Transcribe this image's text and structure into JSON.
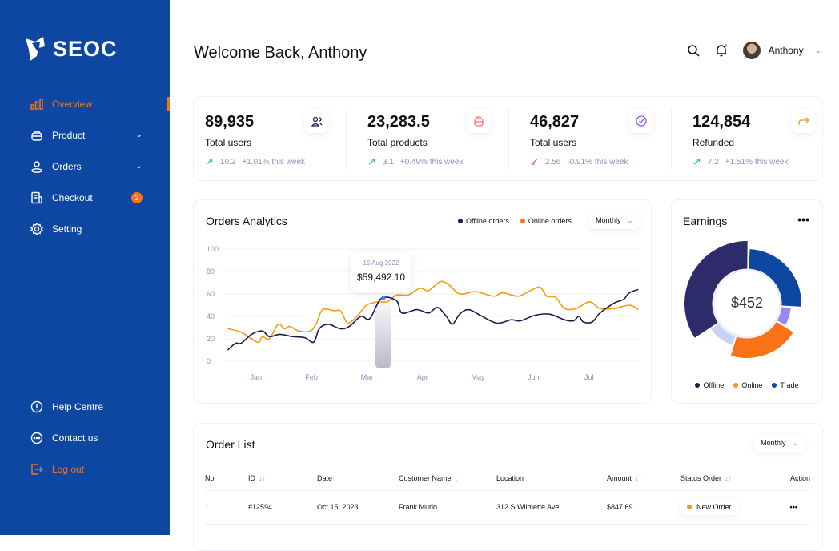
{
  "brand": {
    "name": "SEOC"
  },
  "sidebar": {
    "items": [
      {
        "label": "Overview",
        "icon": "bar-chart-icon",
        "active": true
      },
      {
        "label": "Product",
        "icon": "bag-icon",
        "chevron": "⌄"
      },
      {
        "label": "Orders",
        "icon": "user-icon",
        "chevron": "⌄"
      },
      {
        "label": "Checkout",
        "icon": "receipt-icon",
        "badge": "2"
      },
      {
        "label": "Setting",
        "icon": "gear-icon"
      }
    ],
    "bottom": [
      {
        "label": "Help Centre",
        "icon": "info-icon"
      },
      {
        "label": "Contact us",
        "icon": "chat-icon"
      },
      {
        "label": "Log out",
        "icon": "logout-icon"
      }
    ]
  },
  "header": {
    "title": "Welcome Back, Anthony",
    "user": "Anthony"
  },
  "stats": [
    {
      "value": "89,935",
      "label": "Total users",
      "delta": "10.2",
      "change": "+1.01% this week",
      "trend": "up",
      "icon": "users-icon"
    },
    {
      "value": "23,283.5",
      "label": "Total products",
      "delta": "3.1",
      "change": "+0.49% this week",
      "trend": "up",
      "icon": "bag-icon"
    },
    {
      "value": "46,827",
      "label": "Total users",
      "delta": "2.56",
      "change": "-0.91% this week",
      "trend": "down",
      "icon": "check-circle-icon"
    },
    {
      "value": "124,854",
      "label": "Refunded",
      "delta": "7.2",
      "change": "+1.51% this week",
      "trend": "up",
      "icon": "share-arrow-icon"
    }
  ],
  "analytics": {
    "title": "Orders Analytics",
    "period": "Monthly",
    "tooltip": {
      "date": "15 Aug 2022",
      "value": "$59,492.10"
    }
  },
  "chart_data": [
    {
      "type": "line",
      "title": "Orders Analytics",
      "grid": true,
      "legend": "top-right",
      "categories": [
        "Jan",
        "Feb",
        "Mar",
        "Apr",
        "May",
        "Jun",
        "Jul"
      ],
      "yticks": [
        "0",
        "20",
        "40",
        "60",
        "80",
        "100"
      ],
      "ylim": [
        0,
        100
      ],
      "xlim": [
        0.44,
        7.9
      ],
      "series": [
        {
          "name": "Offline orders",
          "color": "#1e1b4b",
          "points": [
            [
              0.49,
              10
            ],
            [
              0.63,
              16
            ],
            [
              0.73,
              16
            ],
            [
              0.92,
              24
            ],
            [
              1.11,
              27
            ],
            [
              1.24,
              22
            ],
            [
              1.43,
              24
            ],
            [
              1.66,
              22
            ],
            [
              1.88,
              21
            ],
            [
              2.04,
              17
            ],
            [
              2.14,
              29
            ],
            [
              2.3,
              33
            ],
            [
              2.52,
              29
            ],
            [
              2.68,
              31
            ],
            [
              2.89,
              40
            ],
            [
              3.05,
              38
            ],
            [
              3.26,
              56
            ],
            [
              3.53,
              54
            ],
            [
              3.63,
              43
            ],
            [
              3.9,
              46
            ],
            [
              4.11,
              43
            ],
            [
              4.27,
              48
            ],
            [
              4.43,
              40
            ],
            [
              4.54,
              33
            ],
            [
              4.67,
              42
            ],
            [
              4.83,
              46
            ],
            [
              5.04,
              41
            ],
            [
              5.34,
              34
            ],
            [
              5.6,
              37
            ],
            [
              5.76,
              36
            ],
            [
              6.03,
              41
            ],
            [
              6.29,
              42
            ],
            [
              6.56,
              37
            ],
            [
              6.72,
              36
            ],
            [
              6.82,
              40
            ],
            [
              6.9,
              35
            ],
            [
              7.06,
              35
            ],
            [
              7.2,
              43
            ],
            [
              7.46,
              52
            ],
            [
              7.62,
              55
            ],
            [
              7.73,
              61
            ],
            [
              7.89,
              64
            ]
          ]
        },
        {
          "name": "Online orders",
          "color": "#f59e0b",
          "points": [
            [
              0.49,
              29
            ],
            [
              0.73,
              26
            ],
            [
              1.03,
              17
            ],
            [
              1.11,
              22
            ],
            [
              1.24,
              20
            ],
            [
              1.4,
              33
            ],
            [
              1.51,
              29
            ],
            [
              1.61,
              31
            ],
            [
              1.77,
              27
            ],
            [
              1.98,
              27
            ],
            [
              2.09,
              34
            ],
            [
              2.2,
              46
            ],
            [
              2.41,
              45
            ],
            [
              2.52,
              45
            ],
            [
              2.62,
              36
            ],
            [
              2.68,
              34
            ],
            [
              2.84,
              41
            ],
            [
              2.99,
              50
            ],
            [
              3.21,
              53
            ],
            [
              3.37,
              53
            ],
            [
              3.53,
              59
            ],
            [
              3.74,
              59
            ],
            [
              3.95,
              65
            ],
            [
              4.11,
              63
            ],
            [
              4.32,
              71
            ],
            [
              4.48,
              68
            ],
            [
              4.67,
              60
            ],
            [
              4.96,
              62
            ],
            [
              5.28,
              58
            ],
            [
              5.44,
              61
            ],
            [
              5.71,
              58
            ],
            [
              5.87,
              61
            ],
            [
              6.11,
              66
            ],
            [
              6.24,
              58
            ],
            [
              6.4,
              57
            ],
            [
              6.56,
              47
            ],
            [
              6.77,
              47
            ],
            [
              7.01,
              53
            ],
            [
              7.2,
              47
            ],
            [
              7.46,
              47
            ],
            [
              7.73,
              50
            ],
            [
              7.89,
              46
            ]
          ]
        }
      ]
    },
    {
      "type": "pie",
      "title": "Earnings",
      "center_label": "$452",
      "legend": [
        {
          "name": "Offline",
          "color": "#1e1b4b"
        },
        {
          "name": "Online",
          "color": "#f7931e"
        },
        {
          "name": "Trade",
          "color": "#0d47a1"
        }
      ],
      "slices": [
        {
          "value": 34,
          "color": "#2e2b6b"
        },
        {
          "value": 25,
          "color": "#0d47a1"
        },
        {
          "value": 7,
          "color": "#9b87f5"
        },
        {
          "value": 21,
          "color": "#f97316"
        },
        {
          "value": 10,
          "color": "#c7d2f5"
        }
      ]
    }
  ],
  "earnings": {
    "title": "Earnings",
    "total": "$452",
    "legend": [
      "Offline",
      "Online",
      "Trade"
    ]
  },
  "orders": {
    "title": "Order List",
    "period": "Monthly",
    "columns": [
      "No",
      "ID",
      "Date",
      "Customer Name",
      "Location",
      "Amount",
      "Status Order",
      "Action"
    ],
    "rows": [
      {
        "no": "1",
        "id": "#12594",
        "date": "Oct 15, 2023",
        "customer": "Frank Murlo",
        "location": "312 S Wilmette Ave",
        "amount": "$847.69",
        "status": "New Order"
      }
    ]
  }
}
